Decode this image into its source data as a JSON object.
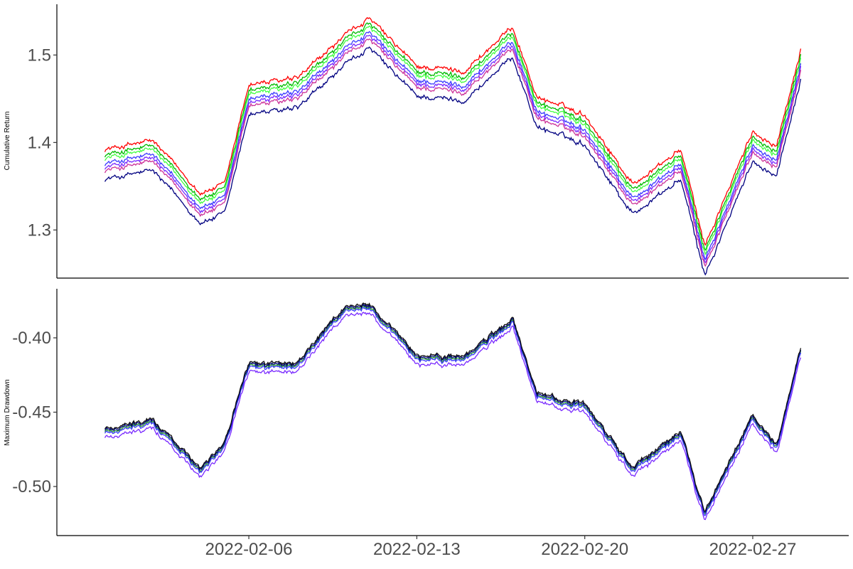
{
  "chart_data": [
    {
      "type": "line",
      "ylabel": "Cumulative Return",
      "xlabel": "",
      "title": "",
      "ylim": [
        1.245,
        1.558
      ],
      "xlim": [
        "2022-01-29",
        "2022-03-03"
      ],
      "grid": false,
      "legend": "none",
      "yticks": [
        1.3,
        1.4,
        1.5
      ],
      "ytick_labels": [
        "1.3",
        "1.4",
        "1.5"
      ],
      "anchors": {
        "x": [
          "2022-01-31",
          "2022-02-02",
          "2022-02-04",
          "2022-02-05",
          "2022-02-06",
          "2022-02-08",
          "2022-02-10",
          "2022-02-11",
          "2022-02-13",
          "2022-02-15",
          "2022-02-17",
          "2022-02-18",
          "2022-02-20",
          "2022-02-22",
          "2022-02-24",
          "2022-02-25",
          "2022-02-27",
          "2022-02-28",
          "2022-03-01"
        ],
        "y": [
          1.38,
          1.39,
          1.33,
          1.34,
          1.455,
          1.46,
          1.51,
          1.53,
          1.475,
          1.47,
          1.52,
          1.44,
          1.42,
          1.34,
          1.38,
          1.27,
          1.4,
          1.385,
          1.495
        ]
      },
      "series": [
        {
          "color": "#ff0000",
          "offset": 0.012
        },
        {
          "color": "#00bb00",
          "offset": 0.006
        },
        {
          "color": "#44ff44",
          "offset": 0.002
        },
        {
          "color": "#3a3aff",
          "offset": -0.004
        },
        {
          "color": "#7a2aff",
          "offset": -0.008
        },
        {
          "color": "#cc3399",
          "offset": -0.012
        },
        {
          "color": "#000080",
          "offset": -0.022
        }
      ]
    },
    {
      "type": "line",
      "ylabel": "Maximum Drawdown",
      "xlabel": "",
      "title": "",
      "ylim": [
        -0.533,
        -0.367
      ],
      "xlim": [
        "2022-01-29",
        "2022-03-03"
      ],
      "grid": false,
      "legend": "none",
      "yticks": [
        -0.5,
        -0.45,
        -0.4
      ],
      "ytick_labels": [
        "-0.50",
        "-0.45",
        "-0.40"
      ],
      "xticks": [
        "2022-02-06",
        "2022-02-13",
        "2022-02-20",
        "2022-02-27"
      ],
      "xtick_labels": [
        "2022-02-06",
        "2022-02-13",
        "2022-02-20",
        "2022-02-27"
      ],
      "anchors": {
        "x": [
          "2022-01-31",
          "2022-02-02",
          "2022-02-04",
          "2022-02-05",
          "2022-02-06",
          "2022-02-08",
          "2022-02-10",
          "2022-02-11",
          "2022-02-13",
          "2022-02-15",
          "2022-02-17",
          "2022-02-18",
          "2022-02-20",
          "2022-02-22",
          "2022-02-24",
          "2022-02-25",
          "2022-02-27",
          "2022-02-28",
          "2022-03-01"
        ],
        "y": [
          -0.464,
          -0.458,
          -0.49,
          -0.472,
          -0.42,
          -0.42,
          -0.382,
          -0.38,
          -0.415,
          -0.415,
          -0.39,
          -0.44,
          -0.448,
          -0.49,
          -0.465,
          -0.52,
          -0.455,
          -0.475,
          -0.41
        ]
      },
      "series": [
        {
          "color": "#2a9d2a",
          "offset": 0.001
        },
        {
          "color": "#3a3aff",
          "offset": 0.0
        },
        {
          "color": "#000080",
          "offset": 0.002
        },
        {
          "color": "#7a2aff",
          "offset": -0.003
        },
        {
          "color": "#111111",
          "offset": 0.003
        }
      ]
    }
  ]
}
